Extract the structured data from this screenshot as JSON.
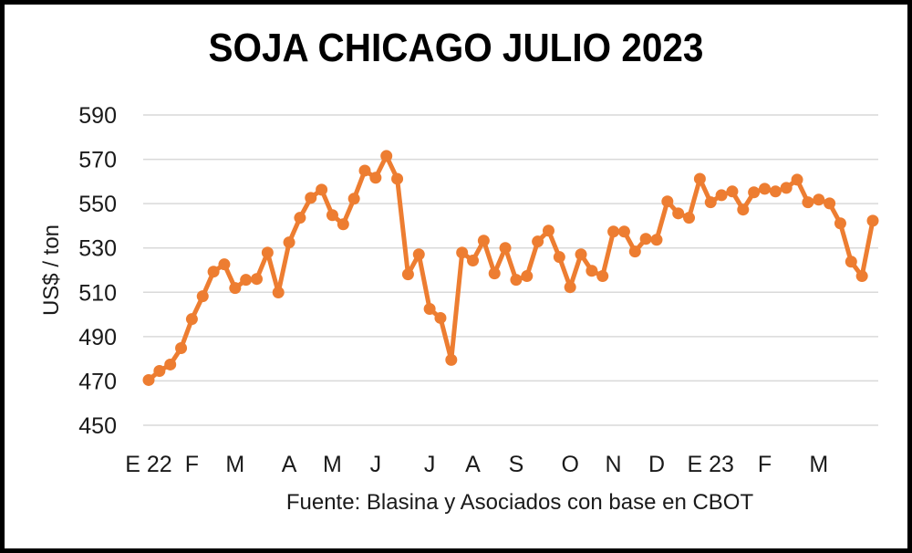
{
  "chart_data": {
    "type": "line",
    "title": "SOJA CHICAGO JULIO 2023",
    "xlabel": "",
    "ylabel": "US$ / ton",
    "source": "Fuente: Blasina y Asociados con base en CBOT",
    "ylim": [
      450,
      590
    ],
    "yticks": [
      450,
      470,
      490,
      510,
      530,
      550,
      570,
      590
    ],
    "grid": true,
    "legend": null,
    "x_tick_labels": [
      {
        "label": "E 22",
        "index": 0
      },
      {
        "label": "F",
        "index": 4
      },
      {
        "label": "M",
        "index": 8
      },
      {
        "label": "A",
        "index": 13
      },
      {
        "label": "M",
        "index": 17
      },
      {
        "label": "J",
        "index": 21
      },
      {
        "label": "J",
        "index": 26
      },
      {
        "label": "A",
        "index": 30
      },
      {
        "label": "S",
        "index": 34
      },
      {
        "label": "O",
        "index": 39
      },
      {
        "label": "N",
        "index": 43
      },
      {
        "label": "D",
        "index": 47
      },
      {
        "label": "E 23",
        "index": 52
      },
      {
        "label": "F",
        "index": 57
      },
      {
        "label": "M",
        "index": 62
      }
    ],
    "series": [
      {
        "name": "Soja Chicago Julio 2023",
        "color": "#ED7D31",
        "values": [
          470.4,
          474.5,
          477.4,
          484.8,
          497.9,
          508.2,
          519.3,
          522.6,
          511.9,
          515.6,
          516.0,
          527.9,
          509.9,
          532.5,
          543.6,
          552.6,
          556.3,
          544.8,
          540.7,
          552.2,
          564.9,
          561.7,
          571.5,
          561.2,
          518.1,
          527.1,
          502.5,
          498.4,
          479.5,
          527.9,
          524.3,
          533.3,
          518.5,
          530.0,
          515.6,
          517.3,
          532.9,
          537.8,
          525.9,
          512.3,
          527.1,
          519.7,
          517.3,
          537.4,
          537.4,
          528.4,
          534.1,
          533.7,
          551.0,
          545.6,
          543.6,
          561.2,
          550.6,
          553.8,
          555.5,
          547.3,
          555.1,
          556.7,
          555.5,
          557.1,
          560.8,
          550.6,
          551.8,
          550.1,
          541.1,
          523.8,
          517.3,
          542.3
        ]
      }
    ]
  },
  "colors": {
    "line": "#ED7D31",
    "grid": "#d9d9d9",
    "border": "#000000"
  }
}
